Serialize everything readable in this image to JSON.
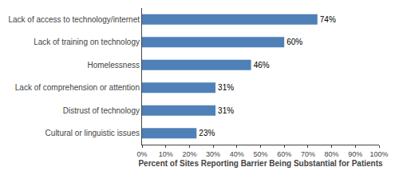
{
  "chart_data": {
    "type": "bar",
    "orientation": "horizontal",
    "categories": [
      "Cultural or linguistic issues",
      "Distrust of technology",
      "Lack of comprehension or attention",
      "Homelessness",
      "Lack of training on technology",
      "Lack of access to technology/internet"
    ],
    "values": [
      23,
      31,
      31,
      46,
      60,
      74
    ],
    "value_labels": [
      "23%",
      "31%",
      "31%",
      "46%",
      "60%",
      "74%"
    ],
    "data_labels": true,
    "color": "#4f81b8",
    "xlabel": "Percent of Sites Reporting Barrier Being Substantial for Patients",
    "xlim": [
      0,
      100
    ],
    "xticks": [
      {
        "value": 0,
        "label": "0%"
      },
      {
        "value": 10,
        "label": "10%"
      },
      {
        "value": 20,
        "label": "20%"
      },
      {
        "value": 30,
        "label": "30%"
      },
      {
        "value": 40,
        "label": "40%"
      },
      {
        "value": 50,
        "label": "50%"
      },
      {
        "value": 60,
        "label": "60%"
      },
      {
        "value": 70,
        "label": "70%"
      },
      {
        "value": 80,
        "label": "80%"
      },
      {
        "value": 90,
        "label": "90%"
      },
      {
        "value": 100,
        "label": "100%"
      }
    ],
    "grid": false
  }
}
